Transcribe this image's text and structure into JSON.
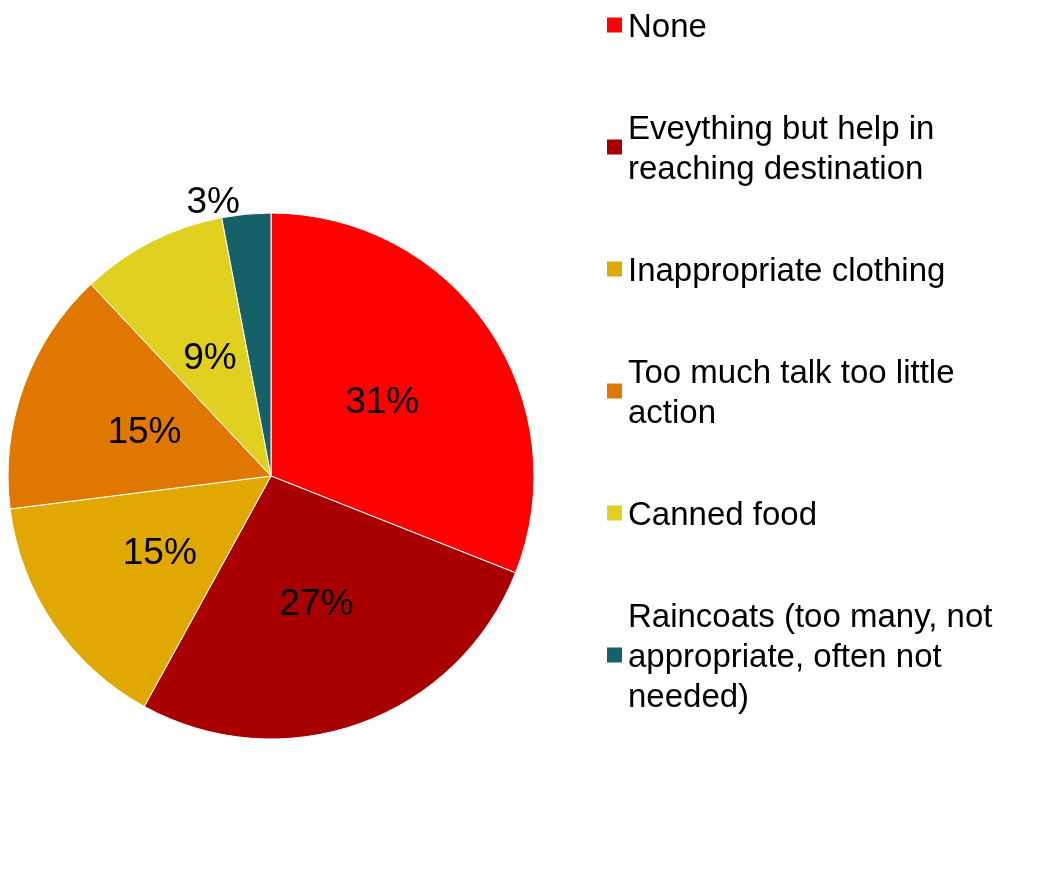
{
  "chart_data": {
    "type": "pie",
    "categories": [
      "None",
      "Eveything but help in reaching destination",
      "Inappropriate clothing",
      "Too much talk too little action",
      "Canned food",
      "Raincoats (too many, not appropriate, often not needed)"
    ],
    "values": [
      31,
      27,
      15,
      15,
      9,
      3
    ],
    "value_labels": [
      "31%",
      "27%",
      "15%",
      "15%",
      "9%",
      "3%"
    ],
    "colors": [
      "#ff0000",
      "#a80000",
      "#e0a800",
      "#e07800",
      "#e0d020",
      "#16606a"
    ],
    "legend": "right"
  }
}
